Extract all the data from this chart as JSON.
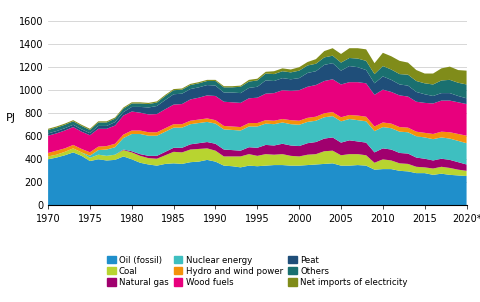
{
  "years": [
    1970,
    1971,
    1972,
    1973,
    1974,
    1975,
    1976,
    1977,
    1978,
    1979,
    1980,
    1981,
    1982,
    1983,
    1984,
    1985,
    1986,
    1987,
    1988,
    1989,
    1990,
    1991,
    1992,
    1993,
    1994,
    1995,
    1996,
    1997,
    1998,
    1999,
    2000,
    2001,
    2002,
    2003,
    2004,
    2005,
    2006,
    2007,
    2008,
    2009,
    2010,
    2011,
    2012,
    2013,
    2014,
    2015,
    2016,
    2017,
    2018,
    2019,
    2020
  ],
  "oil_fossil": [
    400,
    415,
    435,
    460,
    430,
    385,
    400,
    390,
    395,
    425,
    400,
    370,
    355,
    345,
    360,
    365,
    360,
    375,
    380,
    395,
    380,
    345,
    340,
    330,
    345,
    340,
    345,
    350,
    350,
    345,
    345,
    350,
    355,
    360,
    365,
    345,
    345,
    350,
    345,
    310,
    315,
    315,
    300,
    295,
    280,
    280,
    265,
    275,
    265,
    260,
    255
  ],
  "coal": [
    25,
    25,
    30,
    35,
    30,
    28,
    40,
    40,
    45,
    55,
    60,
    60,
    55,
    60,
    75,
    100,
    100,
    110,
    110,
    100,
    95,
    80,
    85,
    95,
    100,
    90,
    100,
    90,
    95,
    85,
    80,
    90,
    90,
    110,
    110,
    90,
    100,
    95,
    90,
    60,
    85,
    75,
    65,
    65,
    55,
    50,
    55,
    60,
    60,
    50,
    45
  ],
  "natural_gas": [
    0,
    0,
    0,
    0,
    0,
    0,
    0,
    0,
    0,
    5,
    10,
    15,
    20,
    25,
    30,
    35,
    40,
    45,
    50,
    55,
    60,
    60,
    55,
    50,
    60,
    70,
    80,
    80,
    90,
    90,
    90,
    100,
    105,
    110,
    115,
    110,
    120,
    110,
    110,
    90,
    95,
    95,
    90,
    90,
    80,
    75,
    70,
    70,
    70,
    65,
    55
  ],
  "nuclear": [
    0,
    0,
    0,
    0,
    0,
    18,
    40,
    55,
    65,
    100,
    150,
    175,
    175,
    175,
    175,
    175,
    175,
    175,
    175,
    175,
    175,
    175,
    175,
    175,
    180,
    185,
    185,
    185,
    185,
    185,
    185,
    185,
    185,
    185,
    185,
    185,
    185,
    185,
    185,
    185,
    185,
    185,
    185,
    185,
    185,
    185,
    185,
    185,
    185,
    185,
    185
  ],
  "hydro_wind": [
    30,
    35,
    30,
    30,
    30,
    30,
    30,
    30,
    30,
    30,
    30,
    30,
    30,
    30,
    30,
    30,
    30,
    30,
    30,
    30,
    30,
    30,
    30,
    30,
    30,
    30,
    30,
    30,
    30,
    35,
    35,
    35,
    35,
    35,
    35,
    35,
    35,
    40,
    40,
    40,
    40,
    40,
    40,
    40,
    40,
    40,
    45,
    50,
    55,
    60,
    65
  ],
  "wood_fuels": [
    150,
    150,
    155,
    155,
    150,
    148,
    155,
    150,
    158,
    165,
    165,
    155,
    155,
    158,
    165,
    170,
    175,
    185,
    190,
    200,
    210,
    210,
    210,
    210,
    215,
    220,
    230,
    240,
    250,
    255,
    265,
    270,
    275,
    280,
    285,
    285,
    285,
    290,
    290,
    275,
    285,
    275,
    275,
    270,
    260,
    260,
    265,
    270,
    275,
    275,
    275
  ],
  "peat": [
    20,
    20,
    20,
    20,
    20,
    18,
    25,
    25,
    30,
    30,
    40,
    50,
    60,
    70,
    80,
    90,
    90,
    90,
    90,
    90,
    90,
    80,
    85,
    85,
    90,
    95,
    115,
    105,
    105,
    100,
    105,
    120,
    120,
    140,
    140,
    120,
    140,
    130,
    115,
    100,
    115,
    105,
    95,
    95,
    85,
    75,
    65,
    65,
    65,
    55,
    50
  ],
  "others": [
    30,
    30,
    30,
    30,
    30,
    28,
    30,
    30,
    30,
    30,
    30,
    30,
    30,
    30,
    35,
    35,
    35,
    35,
    35,
    35,
    40,
    45,
    45,
    55,
    55,
    55,
    60,
    60,
    60,
    60,
    65,
    65,
    65,
    65,
    65,
    70,
    70,
    75,
    80,
    80,
    90,
    90,
    90,
    95,
    95,
    95,
    100,
    110,
    115,
    115,
    120
  ],
  "net_imports": [
    10,
    10,
    10,
    10,
    10,
    10,
    10,
    10,
    10,
    10,
    10,
    10,
    10,
    10,
    10,
    10,
    10,
    10,
    10,
    10,
    10,
    10,
    10,
    10,
    15,
    15,
    15,
    25,
    25,
    25,
    30,
    30,
    40,
    55,
    65,
    75,
    85,
    90,
    100,
    95,
    115,
    115,
    115,
    105,
    95,
    85,
    95,
    105,
    115,
    110,
    120
  ],
  "colors": {
    "oil_fossil": "#1f8fcb",
    "coal": "#b8d430",
    "natural_gas": "#a0006e",
    "nuclear": "#3ebfc0",
    "hydro_wind": "#f4910a",
    "wood_fuels": "#e8007d",
    "peat": "#1f4e79",
    "others": "#1a7070",
    "net_imports": "#808c1a"
  },
  "labels": {
    "oil_fossil": "Oil (fossil)",
    "coal": "Coal",
    "natural_gas": "Natural gas",
    "nuclear": "Nuclear energy",
    "hydro_wind": "Hydro and wind power",
    "wood_fuels": "Wood fuels",
    "peat": "Peat",
    "others": "Others",
    "net_imports": "Net imports of electricity"
  },
  "ylabel": "PJ",
  "ylim": [
    0,
    1600
  ],
  "yticks": [
    0,
    200,
    400,
    600,
    800,
    1000,
    1200,
    1400,
    1600
  ],
  "xtick_labels": [
    "1970",
    "1975",
    "1980",
    "1985",
    "1990",
    "1995",
    "2000",
    "2005",
    "2010",
    "2015",
    "2020*"
  ],
  "xtick_positions": [
    1970,
    1975,
    1980,
    1985,
    1990,
    1995,
    2000,
    2005,
    2010,
    2015,
    2020
  ],
  "background_color": "#ffffff",
  "grid_color": "#c8c8c8"
}
